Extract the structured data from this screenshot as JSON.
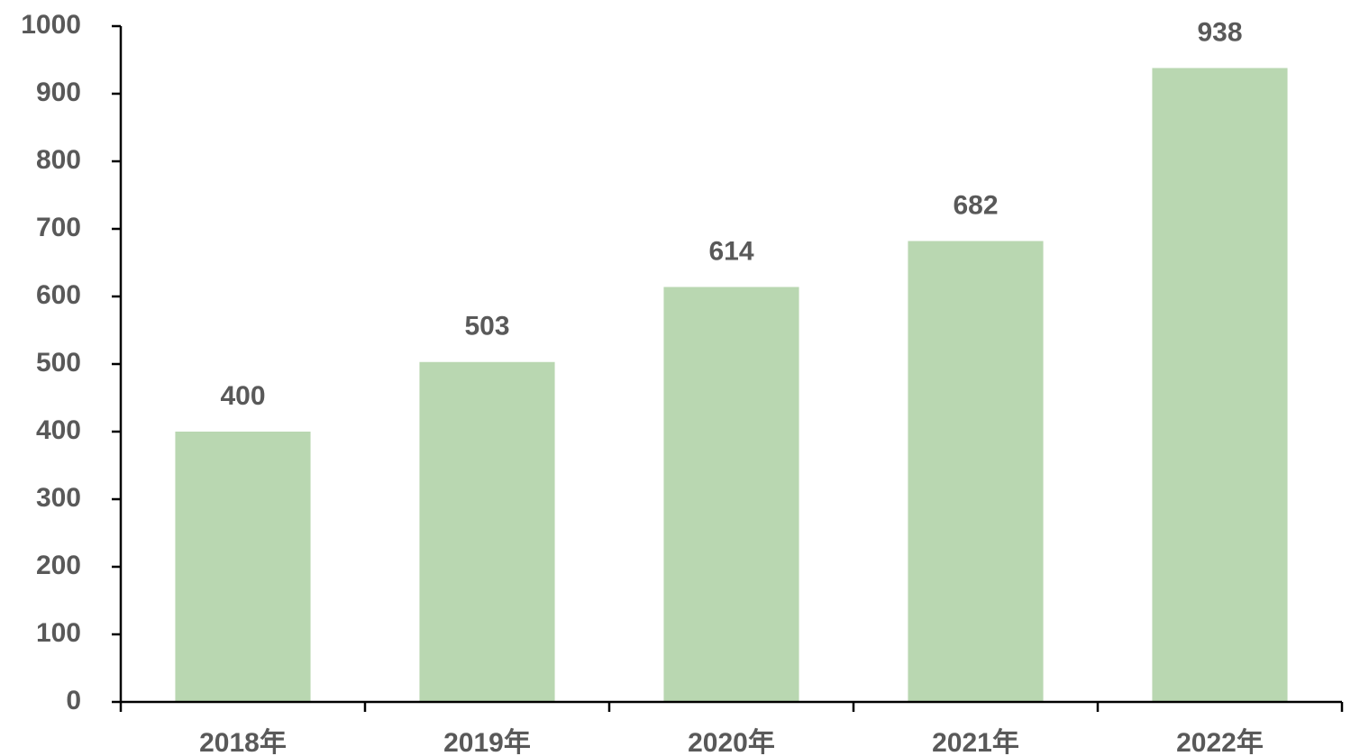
{
  "chart_data": {
    "type": "bar",
    "categories": [
      "2018年",
      "2019年",
      "2020年",
      "2021年",
      "2022年"
    ],
    "values": [
      400,
      503,
      614,
      682,
      938
    ],
    "color": "#b9d7b1",
    "ylim": [
      0,
      1000
    ],
    "yticks": [
      0,
      100,
      200,
      300,
      400,
      500,
      600,
      700,
      800,
      900,
      1000
    ],
    "grid": false
  }
}
